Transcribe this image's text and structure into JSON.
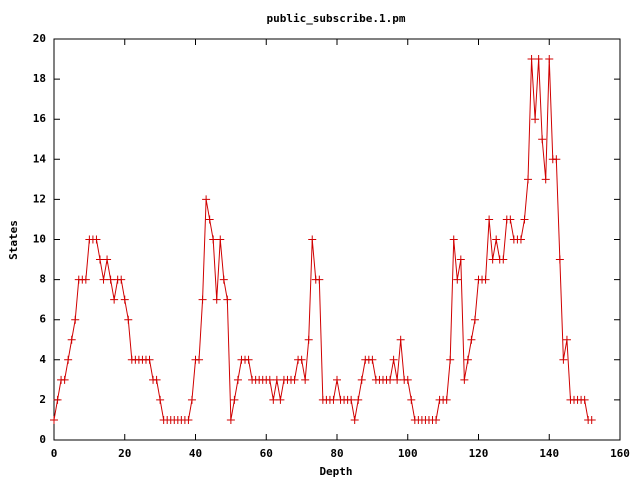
{
  "chart_data": {
    "type": "line",
    "title": "public_subscribe.1.pm",
    "x_label": "Depth",
    "y_label": "States",
    "x": [
      0,
      1,
      2,
      3,
      4,
      5,
      6,
      7,
      8,
      9,
      10,
      11,
      12,
      13,
      14,
      15,
      16,
      17,
      18,
      19,
      20,
      21,
      22,
      23,
      24,
      25,
      26,
      27,
      28,
      29,
      30,
      31,
      32,
      33,
      34,
      35,
      36,
      37,
      38,
      39,
      40,
      41,
      42,
      43,
      44,
      45,
      46,
      47,
      48,
      49,
      50,
      51,
      52,
      53,
      54,
      55,
      56,
      57,
      58,
      59,
      60,
      61,
      62,
      63,
      64,
      65,
      66,
      67,
      68,
      69,
      70,
      71,
      72,
      73,
      74,
      75,
      76,
      77,
      78,
      79,
      80,
      81,
      82,
      83,
      84,
      85,
      86,
      87,
      88,
      89,
      90,
      91,
      92,
      93,
      94,
      95,
      96,
      97,
      98,
      99,
      100,
      101,
      102,
      103,
      104,
      105,
      106,
      107,
      108,
      109,
      110,
      111,
      112,
      113,
      114,
      115,
      116,
      117,
      118,
      119,
      120,
      121,
      122,
      123,
      124,
      125,
      126,
      127,
      128,
      129,
      130,
      131,
      132,
      133,
      134,
      135,
      136,
      137,
      138,
      139,
      140,
      141,
      142,
      143,
      144,
      145,
      146,
      147,
      148,
      149,
      150,
      151,
      152
    ],
    "series": [
      {
        "color": "#d00000",
        "values": [
          1,
          2,
          3,
          3,
          4,
          5,
          6,
          8,
          8,
          8,
          10,
          10,
          10,
          9,
          8,
          9,
          8,
          7,
          8,
          8,
          7,
          6,
          4,
          4,
          4,
          4,
          4,
          4,
          3,
          3,
          2,
          1,
          1,
          1,
          1,
          1,
          1,
          1,
          1,
          2,
          4,
          4,
          7,
          12,
          11,
          10,
          7,
          10,
          8,
          7,
          1,
          2,
          3,
          4,
          4,
          4,
          3,
          3,
          3,
          3,
          3,
          3,
          2,
          3,
          2,
          3,
          3,
          3,
          3,
          4,
          4,
          3,
          5,
          10,
          8,
          8,
          2,
          2,
          2,
          2,
          3,
          2,
          2,
          2,
          2,
          1,
          2,
          3,
          4,
          4,
          4,
          3,
          3,
          3,
          3,
          3,
          4,
          3,
          5,
          3,
          3,
          2,
          1,
          1,
          1,
          1,
          1,
          1,
          1,
          2,
          2,
          2,
          4,
          10,
          8,
          9,
          3,
          4,
          5,
          6,
          8,
          8,
          8,
          11,
          9,
          10,
          9,
          9,
          11,
          11,
          10,
          10,
          10,
          11,
          13,
          19,
          16,
          19,
          15,
          13,
          19,
          14,
          14,
          9,
          4,
          5,
          2,
          2,
          2,
          2,
          2,
          1,
          1
        ]
      }
    ],
    "xlim": [
      0,
      160
    ],
    "ylim": [
      0,
      20
    ],
    "xticks": [
      0,
      20,
      40,
      60,
      80,
      100,
      120,
      140,
      160
    ],
    "yticks": [
      0,
      2,
      4,
      6,
      8,
      10,
      12,
      14,
      16,
      18,
      20
    ]
  }
}
